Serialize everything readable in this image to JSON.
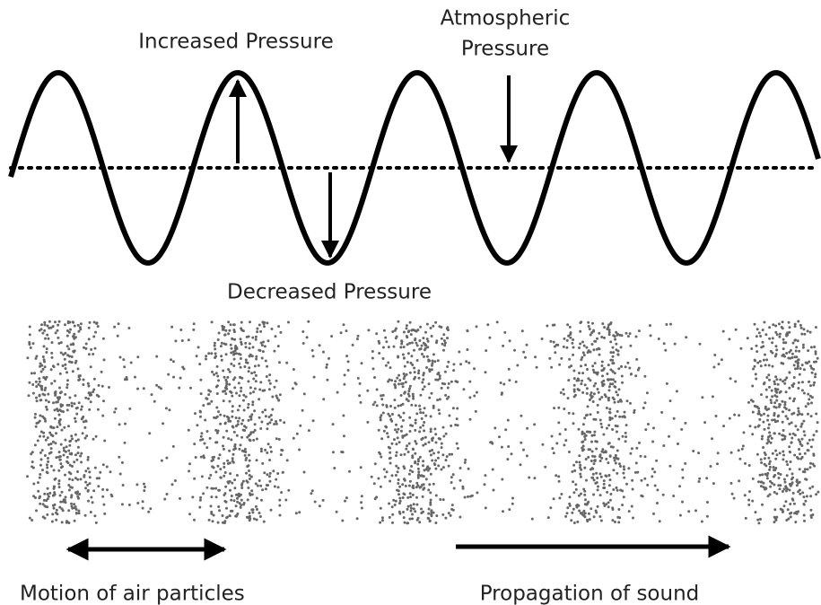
{
  "wave": {
    "increased_label": "Increased Pressure",
    "atmospheric_label": [
      "Atmospheric",
      "Pressure"
    ],
    "decreased_label": "Decreased Pressure"
  },
  "particles": {
    "motion_label": "Motion of air particles",
    "propagation_label": "Propagation of sound"
  }
}
